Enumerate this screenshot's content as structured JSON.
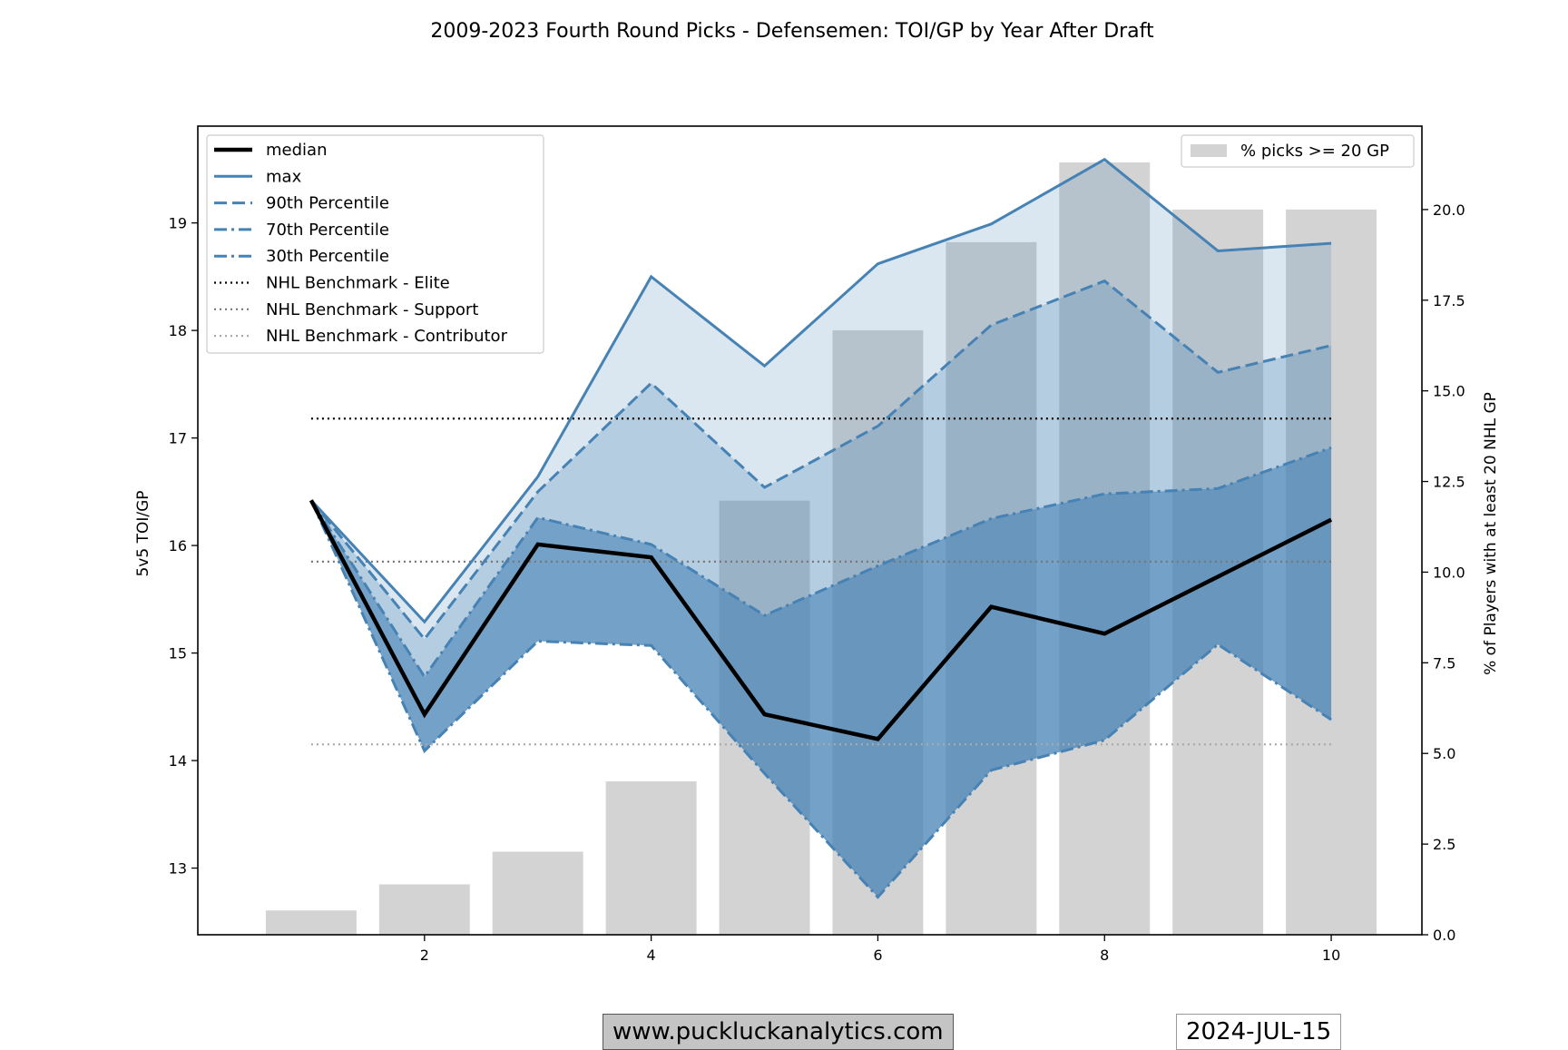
{
  "chart_data": {
    "type": "line",
    "title": "2009-2023 Fourth Round Picks - Defensemen: TOI/GP by Year After Draft",
    "xlabel": "",
    "ylabel": "5v5 TOI/GP",
    "y2label": "% of Players with at least 20 NHL GP",
    "xlim": [
      0.0,
      10.8
    ],
    "ylim": [
      12.38,
      19.9
    ],
    "y2lim": [
      0,
      22.3
    ],
    "xticks": [
      2,
      4,
      6,
      8,
      10
    ],
    "yticks": [
      13,
      14,
      15,
      16,
      17,
      18,
      19
    ],
    "y2ticks": [
      "0.0",
      "2.5",
      "5.0",
      "7.5",
      "10.0",
      "12.5",
      "15.0",
      "17.5",
      "20.0"
    ],
    "grid": false,
    "x": [
      1,
      2,
      3,
      4,
      5,
      6,
      7,
      8,
      9,
      10
    ],
    "series": [
      {
        "name": "median",
        "style": "solid-thick",
        "color": "#000000",
        "values": [
          16.42,
          14.43,
          16.01,
          15.89,
          14.43,
          14.2,
          15.43,
          15.18,
          15.71,
          16.24
        ]
      },
      {
        "name": "max",
        "style": "solid",
        "color": "#4682b4",
        "values": [
          16.42,
          15.29,
          16.64,
          18.5,
          17.67,
          18.62,
          18.99,
          19.59,
          18.74,
          18.81
        ]
      },
      {
        "name": "90th Percentile",
        "style": "dashed",
        "color": "#4682b4",
        "values": [
          16.42,
          15.13,
          16.5,
          17.51,
          16.54,
          17.11,
          18.05,
          18.46,
          17.61,
          17.86
        ]
      },
      {
        "name": "70th Percentile",
        "style": "dashdot",
        "color": "#4682b4",
        "values": [
          16.42,
          14.78,
          16.26,
          16.01,
          15.35,
          15.81,
          16.25,
          16.48,
          16.53,
          16.91
        ]
      },
      {
        "name": "30th Percentile",
        "style": "dashdot",
        "color": "#4682b4",
        "values": [
          16.42,
          14.09,
          15.11,
          15.07,
          13.88,
          12.73,
          13.91,
          14.19,
          15.08,
          14.38
        ]
      }
    ],
    "benchmarks": [
      {
        "name": "NHL Benchmark - Elite",
        "value": 17.18,
        "color": "#000000"
      },
      {
        "name": "NHL Benchmark - Support",
        "value": 15.85,
        "color": "#777777"
      },
      {
        "name": "NHL Benchmark - Contributor",
        "value": 14.15,
        "color": "#aaaaaa"
      }
    ],
    "bars": {
      "name": "% picks >= 20 GP",
      "color": "#d3d3d3",
      "values": [
        0.67,
        1.39,
        2.29,
        4.23,
        11.97,
        16.67,
        19.1,
        21.3,
        20.0,
        20.0
      ]
    },
    "legend_left": "top-left",
    "legend_right": "top-right"
  },
  "footer": {
    "website": "www.puckluckanalytics.com",
    "date": "2024-JUL-15"
  }
}
